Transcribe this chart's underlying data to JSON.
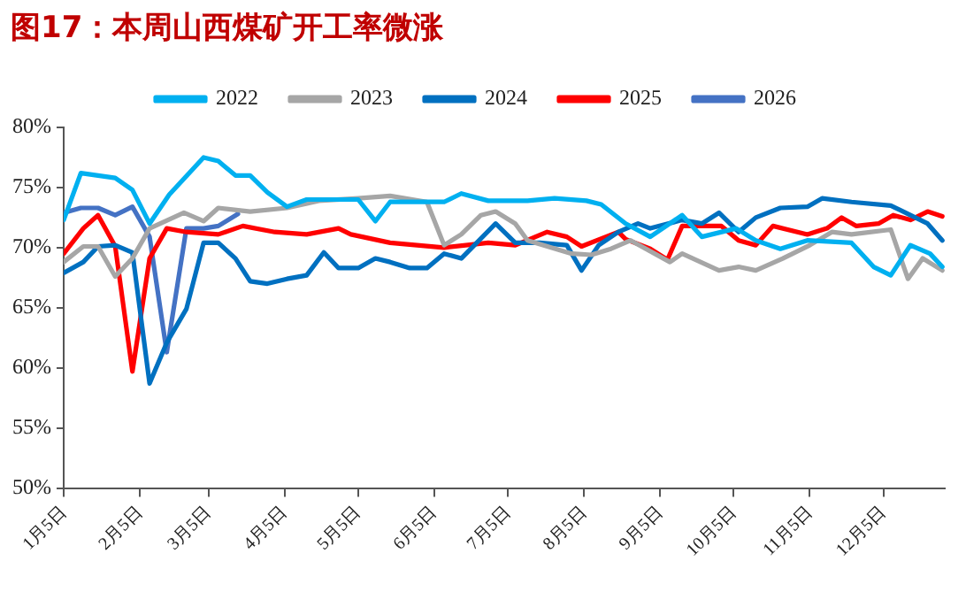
{
  "chart_data": {
    "type": "line",
    "title": "图17：本周山西煤矿开工率微涨",
    "xlim": [
      "--01-05",
      "--12-30"
    ],
    "xticks": [
      {
        "value": "--01-05",
        "label": "1月5日"
      },
      {
        "value": "--02-05",
        "label": "2月5日"
      },
      {
        "value": "--03-05",
        "label": "3月5日"
      },
      {
        "value": "--04-05",
        "label": "4月5日"
      },
      {
        "value": "--05-05",
        "label": "5月5日"
      },
      {
        "value": "--06-05",
        "label": "6月5日"
      },
      {
        "value": "--07-05",
        "label": "7月5日"
      },
      {
        "value": "--08-05",
        "label": "8月5日"
      },
      {
        "value": "--09-05",
        "label": "9月5日"
      },
      {
        "value": "--10-05",
        "label": "10月5日"
      },
      {
        "value": "--11-05",
        "label": "11月5日"
      },
      {
        "value": "--12-05",
        "label": "12月5日"
      }
    ],
    "ylim": [
      50,
      80
    ],
    "yticks": [
      {
        "value": 50,
        "label": "50%"
      },
      {
        "value": 55,
        "label": "55%"
      },
      {
        "value": 60,
        "label": "60%"
      },
      {
        "value": 65,
        "label": "65%"
      },
      {
        "value": 70,
        "label": "70%"
      },
      {
        "value": 75,
        "label": "75%"
      },
      {
        "value": 80,
        "label": "80%"
      }
    ],
    "grid": false,
    "legend": "top",
    "marker": "none",
    "line_style": "solid",
    "series": [
      {
        "name": "2022",
        "color": "#00b0f0",
        "x": [
          "--01-05",
          "--01-12",
          "--01-26",
          "--02-02",
          "--02-09",
          "--02-17",
          "--03-03",
          "--03-09",
          "--03-16",
          "--03-22",
          "--03-29",
          "--04-06",
          "--04-14",
          "--05-05",
          "--05-12",
          "--05-18",
          "--06-01",
          "--06-09",
          "--06-16",
          "--06-27",
          "--07-13",
          "--07-24",
          "--08-06",
          "--08-12",
          "--08-22",
          "--09-01",
          "--09-14",
          "--09-22",
          "--10-06",
          "--10-14",
          "--10-24",
          "--11-04",
          "--11-22",
          "--12-01",
          "--12-08",
          "--12-16",
          "--12-24",
          "--12-29"
        ],
        "values": [
          72.3,
          76.2,
          75.8,
          74.8,
          72,
          74.4,
          77.5,
          77.2,
          76,
          76,
          74.6,
          73.4,
          74,
          74,
          72.2,
          73.8,
          73.8,
          73.8,
          74.5,
          73.9,
          73.9,
          74.1,
          73.9,
          73.6,
          72,
          70.9,
          72.7,
          70.9,
          71.6,
          70.6,
          69.9,
          70.6,
          70.4,
          68.4,
          67.7,
          70.2,
          69.5,
          68.4
        ]
      },
      {
        "name": "2023",
        "color": "#a6a6a6",
        "x": [
          "--01-05",
          "--01-13",
          "--01-19",
          "--01-26",
          "--02-02",
          "--02-09",
          "--02-23",
          "--03-03",
          "--03-09",
          "--03-22",
          "--04-06",
          "--04-19",
          "--05-05",
          "--05-18",
          "--06-02",
          "--06-09",
          "--06-16",
          "--06-24",
          "--06-30",
          "--07-08",
          "--07-13",
          "--07-31",
          "--08-08",
          "--08-16",
          "--08-24",
          "--09-09",
          "--09-14",
          "--09-29",
          "--10-07",
          "--10-14",
          "--10-25",
          "--11-05",
          "--11-14",
          "--11-22",
          "--12-08",
          "--12-15",
          "--12-21",
          "--12-29"
        ],
        "values": [
          68.8,
          70.1,
          70.1,
          67.6,
          69.1,
          71.6,
          72.9,
          72.2,
          73.3,
          73,
          73.3,
          73.9,
          74.1,
          74.3,
          73.8,
          70.2,
          71.1,
          72.7,
          73,
          72,
          70.6,
          69.5,
          69.4,
          69.9,
          70.6,
          68.8,
          69.5,
          68.1,
          68.4,
          68.1,
          69.1,
          70.2,
          71.3,
          71.1,
          71.5,
          67.4,
          69.1,
          68.1
        ]
      },
      {
        "name": "2024",
        "color": "#0070c0",
        "x": [
          "--01-05",
          "--01-13",
          "--01-19",
          "--01-26",
          "--02-02",
          "--02-09",
          "--02-16",
          "--02-24",
          "--03-03",
          "--03-09",
          "--03-16",
          "--03-22",
          "--03-29",
          "--04-06",
          "--04-14",
          "--04-21",
          "--04-27",
          "--05-05",
          "--05-12",
          "--05-18",
          "--05-26",
          "--06-02",
          "--06-09",
          "--06-16",
          "--06-30",
          "--07-08",
          "--07-18",
          "--07-29",
          "--08-04",
          "--08-11",
          "--08-19",
          "--08-27",
          "--09-01",
          "--09-14",
          "--09-22",
          "--09-29",
          "--10-07",
          "--10-14",
          "--10-24",
          "--11-04",
          "--11-10",
          "--11-22",
          "--12-08",
          "--12-16",
          "--12-23",
          "--12-29"
        ],
        "values": [
          67.9,
          68.8,
          70.1,
          70.2,
          69.6,
          58.7,
          62.1,
          64.9,
          70.4,
          70.4,
          69.1,
          67.2,
          67,
          67.4,
          67.7,
          69.6,
          68.3,
          68.3,
          69.1,
          68.8,
          68.3,
          68.3,
          69.5,
          69.1,
          72,
          70.4,
          70.4,
          70.2,
          68.1,
          70.2,
          71.3,
          72,
          71.6,
          72.3,
          72,
          72.9,
          71.3,
          72.5,
          73.3,
          73.4,
          74.1,
          73.8,
          73.5,
          72.7,
          72,
          70.6
        ]
      },
      {
        "name": "2025",
        "color": "#ff0000",
        "x": [
          "--01-05",
          "--01-13",
          "--01-19",
          "--01-26",
          "--02-02",
          "--02-09",
          "--02-16",
          "--02-24",
          "--03-09",
          "--03-19",
          "--04-01",
          "--04-14",
          "--04-27",
          "--05-02",
          "--05-18",
          "--06-09",
          "--06-27",
          "--07-08",
          "--07-21",
          "--07-29",
          "--08-04",
          "--08-19",
          "--08-22",
          "--09-01",
          "--09-08",
          "--09-14",
          "--09-30",
          "--10-07",
          "--10-14",
          "--10-21",
          "--11-04",
          "--11-12",
          "--11-18",
          "--11-24",
          "--12-03",
          "--12-09",
          "--12-16",
          "--12-23",
          "--12-29"
        ],
        "values": [
          69.5,
          71.6,
          72.7,
          70.1,
          59.7,
          69.1,
          71.6,
          71.3,
          71.1,
          71.8,
          71.3,
          71.1,
          71.6,
          71.1,
          70.4,
          70,
          70.4,
          70.2,
          71.3,
          70.9,
          70.1,
          71.3,
          70.7,
          69.9,
          69,
          71.8,
          71.8,
          70.6,
          70.2,
          71.8,
          71.1,
          71.6,
          72.5,
          71.8,
          72,
          72.7,
          72.3,
          73,
          72.6
        ]
      },
      {
        "name": "2026",
        "color": "#4472c4",
        "x": [
          "--01-05",
          "--01-12",
          "--01-19",
          "--01-26",
          "--02-02",
          "--02-09",
          "--02-16",
          "--02-24",
          "--03-03",
          "--03-09",
          "--03-17"
        ],
        "values": [
          72.9,
          73.3,
          73.3,
          72.7,
          73.4,
          70.9,
          61.3,
          71.6,
          71.6,
          71.8,
          72.8
        ]
      }
    ]
  }
}
